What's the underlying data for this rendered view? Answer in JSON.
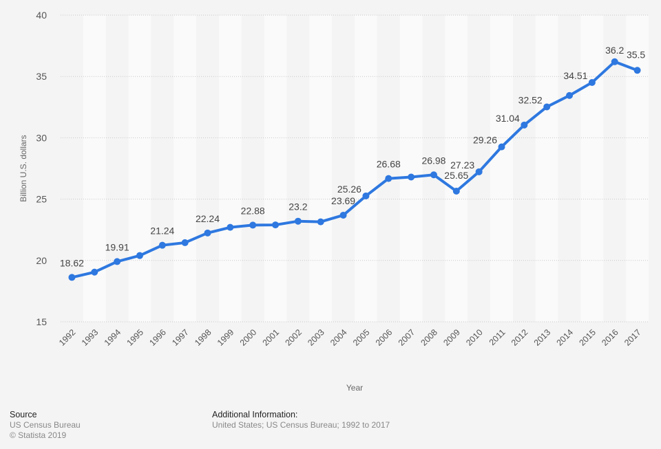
{
  "chart_data": {
    "type": "line",
    "title": "",
    "xlabel": "Year",
    "ylabel": "Billion U.S. dollars",
    "ylim": [
      15,
      40
    ],
    "yticks": [
      15,
      20,
      25,
      30,
      35,
      40
    ],
    "grid": true,
    "legend": "none",
    "series_color": "#2e78e0",
    "categories": [
      "1992",
      "1993",
      "1994",
      "1995",
      "1996",
      "1997",
      "1998",
      "1999",
      "2000",
      "2001",
      "2002",
      "2003",
      "2004",
      "2005",
      "2006",
      "2007",
      "2008",
      "2009",
      "2010",
      "2011",
      "2012",
      "2013",
      "2014",
      "2015",
      "2016",
      "2017"
    ],
    "series": [
      {
        "name": "Value",
        "values": [
          18.62,
          19.05,
          19.91,
          20.4,
          21.24,
          21.45,
          22.24,
          22.7,
          22.88,
          22.9,
          23.2,
          23.15,
          23.69,
          25.26,
          26.68,
          26.8,
          26.98,
          25.65,
          27.23,
          29.26,
          31.04,
          32.52,
          33.45,
          34.51,
          36.2,
          35.5
        ],
        "labels": [
          "18.62",
          "",
          "19.91",
          "",
          "21.24",
          "",
          "22.24",
          "",
          "22.88",
          "",
          "23.2",
          "",
          "23.69",
          "25.26",
          "26.68",
          "",
          "26.98",
          "25.65",
          "27.23",
          "29.26",
          "31.04",
          "32.52",
          "",
          "34.51",
          "36.2",
          "35.5"
        ]
      }
    ]
  },
  "footer": {
    "source_title": "Source",
    "source_lines": [
      "US Census Bureau",
      "© Statista 2019"
    ],
    "info_title": "Additional Information:",
    "info_text": "United States; US Census Bureau; 1992 to 2017"
  }
}
